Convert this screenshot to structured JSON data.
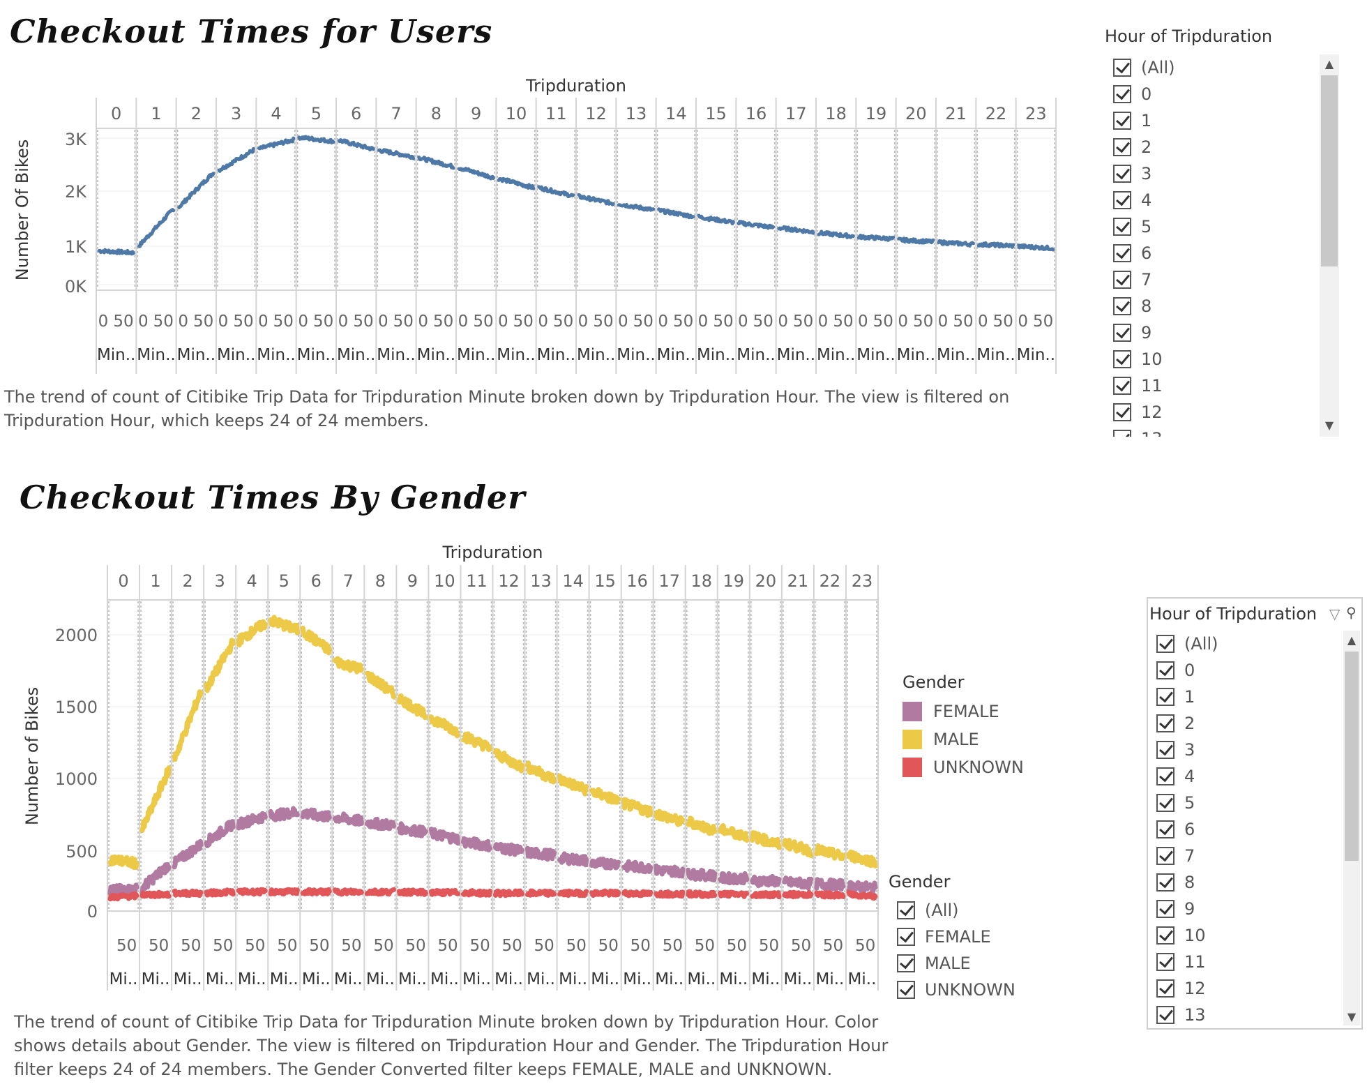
{
  "chart1": {
    "title": "Checkout Times for Users",
    "header": "Tripduration",
    "ylabel": "Number Of Bikes",
    "yticks": [
      "3K",
      "2K",
      "1K",
      "0K"
    ],
    "minute_ticks": [
      "0",
      "50"
    ],
    "minute_label": "Min..",
    "caption": "The trend of count of  Citibike Trip Data for Tripduration Minute broken down by Tripduration Hour. The view is filtered on Tripduration Hour, which keeps 24 of 24 members."
  },
  "chart2": {
    "title": "Checkout Times By Gender",
    "header": "Tripduration",
    "ylabel": "Number of Bikes",
    "yticks": [
      "2000",
      "1500",
      "1000",
      "500",
      "0"
    ],
    "minute_ticks": [
      "50"
    ],
    "minute_label": "Mi..",
    "caption": "The trend of count of Citibike Trip Data for Tripduration Minute broken down by Tripduration Hour.  Color shows details about Gender. The view is filtered on Tripduration Hour and Gender. The Tripduration Hour filter keeps 24 of 24 members. The Gender Converted filter keeps FEMALE, MALE and UNKNOWN."
  },
  "filter1": {
    "title": "Hour of Tripduration",
    "items": [
      "(All)",
      "0",
      "1",
      "2",
      "3",
      "4",
      "5",
      "6",
      "7",
      "8",
      "9",
      "10",
      "11",
      "12",
      "13"
    ]
  },
  "filter2": {
    "title": "Hour of Tripduration",
    "items": [
      "(All)",
      "0",
      "1",
      "2",
      "3",
      "4",
      "5",
      "6",
      "7",
      "8",
      "9",
      "10",
      "11",
      "12",
      "13"
    ]
  },
  "color_legend": {
    "title": "Gender",
    "items": [
      {
        "label": "FEMALE",
        "color": "#b07aa1"
      },
      {
        "label": "MALE",
        "color": "#edc948"
      },
      {
        "label": "UNKNOWN",
        "color": "#e15759"
      }
    ]
  },
  "gender_filter": {
    "title": "Gender",
    "items": [
      "(All)",
      "FEMALE",
      "MALE",
      "UNKNOWN"
    ]
  },
  "chart_data": [
    {
      "type": "line",
      "title": "Checkout Times for Users",
      "xlabel": "Tripduration",
      "ylabel": "Number Of Bikes",
      "facets": [
        "0",
        "1",
        "2",
        "3",
        "4",
        "5",
        "6",
        "7",
        "8",
        "9",
        "10",
        "11",
        "12",
        "13",
        "14",
        "15",
        "16",
        "17",
        "18",
        "19",
        "20",
        "21",
        "22",
        "23"
      ],
      "ylim": [
        0,
        3000
      ],
      "color": "#4e79a7",
      "series": [
        {
          "start": [
            680,
            780,
            1560,
            2300,
            2730,
            2960,
            2900,
            2700,
            2550,
            2350,
            2130,
            1950,
            1770,
            1620,
            1490,
            1360,
            1240,
            1140,
            1040,
            960,
            900,
            850,
            810,
            770
          ],
          "end": [
            640,
            1520,
            2250,
            2700,
            2910,
            2880,
            2720,
            2570,
            2370,
            2150,
            1950,
            1780,
            1630,
            1500,
            1370,
            1250,
            1150,
            1060,
            970,
            920,
            860,
            810,
            780,
            730
          ]
        }
      ]
    },
    {
      "type": "line",
      "title": "Checkout Times By Gender",
      "xlabel": "Tripduration",
      "ylabel": "Number of Bikes",
      "facets": [
        "0",
        "1",
        "2",
        "3",
        "4",
        "5",
        "6",
        "7",
        "8",
        "9",
        "10",
        "11",
        "12",
        "13",
        "14",
        "15",
        "16",
        "17",
        "18",
        "19",
        "20",
        "21",
        "22",
        "23"
      ],
      "ylim": [
        0,
        2200
      ],
      "series": [
        {
          "name": "FEMALE",
          "color": "#b07aa1",
          "start": [
            110,
            130,
            310,
            470,
            600,
            660,
            680,
            650,
            610,
            570,
            530,
            470,
            430,
            390,
            350,
            310,
            290,
            260,
            230,
            200,
            180,
            170,
            160,
            140
          ],
          "end": [
            120,
            300,
            450,
            600,
            660,
            690,
            650,
            620,
            590,
            540,
            490,
            440,
            400,
            370,
            330,
            310,
            280,
            250,
            220,
            200,
            180,
            160,
            150,
            130
          ]
        },
        {
          "name": "MALE",
          "color": "#edc948",
          "start": [
            340,
            560,
            1080,
            1600,
            1950,
            2100,
            2020,
            1800,
            1700,
            1530,
            1380,
            1250,
            1120,
            1020,
            930,
            840,
            750,
            680,
            620,
            560,
            510,
            460,
            410,
            370
          ],
          "end": [
            310,
            1000,
            1580,
            1940,
            2080,
            2030,
            1880,
            1740,
            1560,
            1400,
            1280,
            1160,
            1020,
            930,
            850,
            770,
            690,
            610,
            550,
            510,
            450,
            400,
            360,
            320
          ]
        },
        {
          "name": "UNKNOWN",
          "color": "#e15759",
          "start": [
            60,
            80,
            90,
            90,
            100,
            100,
            100,
            100,
            100,
            100,
            95,
            95,
            90,
            90,
            90,
            90,
            90,
            85,
            85,
            85,
            80,
            80,
            80,
            80
          ],
          "end": [
            70,
            80,
            90,
            100,
            100,
            100,
            100,
            100,
            100,
            95,
            95,
            90,
            90,
            90,
            90,
            90,
            85,
            85,
            80,
            80,
            80,
            80,
            75,
            70
          ]
        }
      ]
    }
  ]
}
